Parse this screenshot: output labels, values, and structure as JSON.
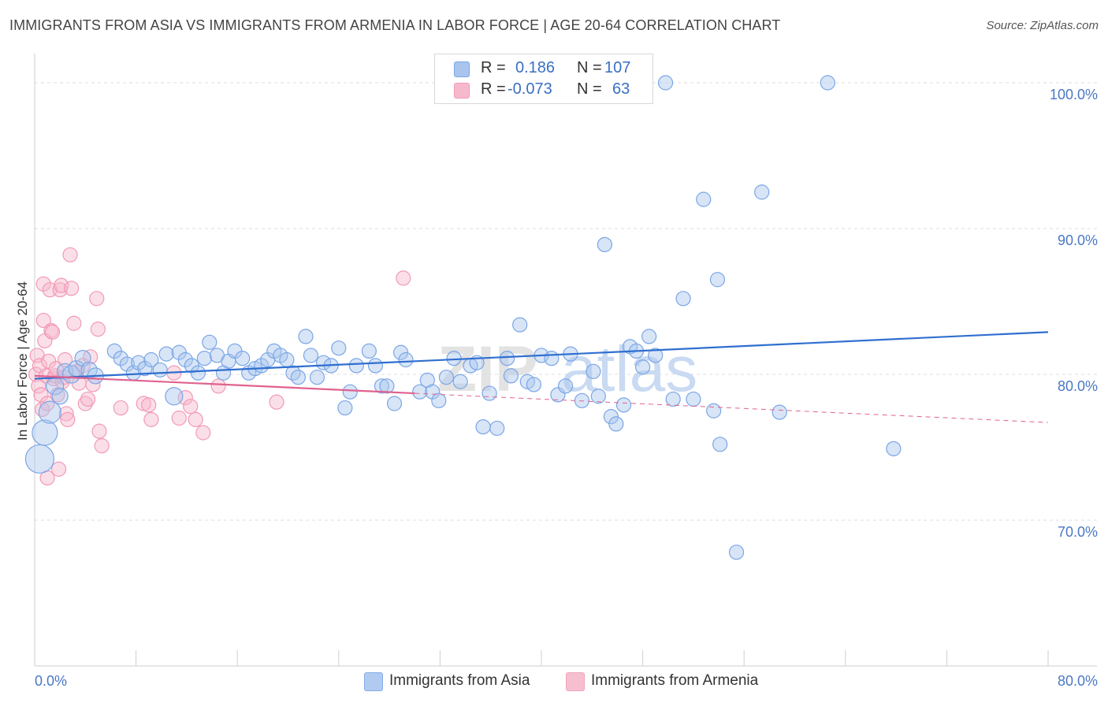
{
  "header": {
    "title": "IMMIGRANTS FROM ASIA VS IMMIGRANTS FROM ARMENIA IN LABOR FORCE | AGE 20-64 CORRELATION CHART",
    "source": "Source: ZipAtlas.com"
  },
  "legend": {
    "rows": [
      {
        "r_label": "R =",
        "r_value": "0.186",
        "n_label": "N =",
        "n_value": "107",
        "color": "#a9c5ee"
      },
      {
        "r_label": "R =",
        "r_value": "-0.073",
        "n_label": "N =",
        "n_value": "63",
        "color": "#f6b9cb"
      }
    ]
  },
  "bottom_legend": [
    {
      "label": "Immigrants from Asia",
      "color": "#a9c5ee"
    },
    {
      "label": "Immigrants from Armenia",
      "color": "#f6b9cb"
    }
  ],
  "watermark": {
    "zip": "ZIP",
    "atlas": "atlas"
  },
  "chart_data": {
    "type": "scatter",
    "ylabel": "In Labor Force | Age 20-64",
    "xlim": [
      0,
      80
    ],
    "ylim": [
      60,
      102
    ],
    "x_ticks": [
      "0.0%",
      "80.0%"
    ],
    "y_ticks": [
      {
        "value": 100,
        "label": "100.0%"
      },
      {
        "value": 90,
        "label": "90.0%"
      },
      {
        "value": 80,
        "label": "80.0%"
      },
      {
        "value": 70,
        "label": "70.0%"
      }
    ],
    "grid": true,
    "series": [
      {
        "name": "Immigrants from Asia",
        "color": "#7aa6e6",
        "trend": {
          "x": [
            0,
            80
          ],
          "y": [
            79.7,
            82.9
          ],
          "color": "#2f6fd0",
          "dashed_from": null
        },
        "points": [
          [
            0.4,
            74.2,
            18
          ],
          [
            0.8,
            76.0,
            16
          ],
          [
            1.2,
            77.4,
            14
          ],
          [
            1.6,
            79.2,
            11
          ],
          [
            2.0,
            78.5,
            10
          ],
          [
            2.4,
            80.2,
            10
          ],
          [
            2.9,
            80.0,
            11
          ],
          [
            3.3,
            80.4,
            10
          ],
          [
            3.8,
            81.1,
            10
          ],
          [
            4.3,
            80.3,
            10
          ],
          [
            4.8,
            79.9,
            10
          ],
          [
            6.3,
            81.6,
            9
          ],
          [
            6.8,
            81.1,
            9
          ],
          [
            7.3,
            80.7,
            9
          ],
          [
            7.8,
            80.1,
            9
          ],
          [
            8.2,
            80.8,
            9
          ],
          [
            8.7,
            80.4,
            9
          ],
          [
            9.2,
            81.0,
            9
          ],
          [
            9.9,
            80.3,
            9
          ],
          [
            10.4,
            81.4,
            9
          ],
          [
            11.0,
            78.5,
            11
          ],
          [
            11.4,
            81.5,
            9
          ],
          [
            11.9,
            81.0,
            9
          ],
          [
            12.4,
            80.6,
            9
          ],
          [
            12.9,
            80.1,
            9
          ],
          [
            13.4,
            81.1,
            9
          ],
          [
            13.8,
            82.2,
            9
          ],
          [
            14.4,
            81.3,
            9
          ],
          [
            14.9,
            80.1,
            9
          ],
          [
            15.3,
            80.9,
            9
          ],
          [
            15.8,
            81.6,
            9
          ],
          [
            16.4,
            81.1,
            9
          ],
          [
            16.9,
            80.1,
            9
          ],
          [
            17.4,
            80.4,
            9
          ],
          [
            17.9,
            80.6,
            9
          ],
          [
            18.4,
            81.0,
            9
          ],
          [
            18.9,
            81.6,
            9
          ],
          [
            19.4,
            81.3,
            9
          ],
          [
            19.9,
            81.0,
            9
          ],
          [
            20.4,
            80.1,
            9
          ],
          [
            20.8,
            79.8,
            9
          ],
          [
            21.4,
            82.6,
            9
          ],
          [
            21.8,
            81.3,
            9
          ],
          [
            22.3,
            79.8,
            9
          ],
          [
            22.8,
            80.8,
            9
          ],
          [
            23.4,
            80.6,
            9
          ],
          [
            24.0,
            81.8,
            9
          ],
          [
            24.5,
            77.7,
            9
          ],
          [
            24.9,
            78.8,
            9
          ],
          [
            25.4,
            80.6,
            9
          ],
          [
            26.4,
            81.6,
            9
          ],
          [
            26.9,
            80.6,
            9
          ],
          [
            27.4,
            79.2,
            9
          ],
          [
            27.8,
            79.2,
            9
          ],
          [
            28.4,
            78.0,
            9
          ],
          [
            28.9,
            81.5,
            9
          ],
          [
            29.3,
            81.0,
            9
          ],
          [
            30.4,
            78.8,
            9
          ],
          [
            31.0,
            79.6,
            9
          ],
          [
            31.4,
            78.8,
            9
          ],
          [
            31.9,
            78.2,
            9
          ],
          [
            32.5,
            79.8,
            9
          ],
          [
            33.1,
            81.1,
            9
          ],
          [
            33.6,
            79.5,
            9
          ],
          [
            34.4,
            80.6,
            9
          ],
          [
            34.9,
            80.8,
            9
          ],
          [
            35.4,
            76.4,
            9
          ],
          [
            35.9,
            78.7,
            9
          ],
          [
            36.5,
            76.3,
            9
          ],
          [
            37.3,
            81.1,
            9
          ],
          [
            37.6,
            79.9,
            9
          ],
          [
            38.3,
            83.4,
            9
          ],
          [
            38.9,
            79.5,
            9
          ],
          [
            39.4,
            79.3,
            9
          ],
          [
            40.0,
            81.3,
            9
          ],
          [
            40.8,
            81.1,
            9
          ],
          [
            41.3,
            78.6,
            9
          ],
          [
            41.9,
            79.2,
            9
          ],
          [
            42.3,
            81.4,
            9
          ],
          [
            43.2,
            78.2,
            9
          ],
          [
            44.1,
            80.2,
            9
          ],
          [
            44.5,
            78.5,
            9
          ],
          [
            45.0,
            88.9,
            9
          ],
          [
            45.5,
            77.1,
            9
          ],
          [
            45.9,
            76.6,
            9
          ],
          [
            46.5,
            77.9,
            9
          ],
          [
            47.0,
            81.9,
            9
          ],
          [
            47.5,
            81.6,
            9
          ],
          [
            48.0,
            80.5,
            9
          ],
          [
            48.5,
            82.6,
            9
          ],
          [
            49.0,
            81.3,
            9
          ],
          [
            49.8,
            100.0,
            9
          ],
          [
            50.4,
            78.3,
            9
          ],
          [
            51.2,
            85.2,
            9
          ],
          [
            52.0,
            78.3,
            9
          ],
          [
            52.8,
            92.0,
            9
          ],
          [
            53.6,
            77.5,
            9
          ],
          [
            53.9,
            86.5,
            9
          ],
          [
            54.1,
            75.2,
            9
          ],
          [
            55.4,
            67.8,
            9
          ],
          [
            57.4,
            92.5,
            9
          ],
          [
            58.8,
            77.4,
            9
          ],
          [
            62.6,
            100.0,
            9
          ],
          [
            67.8,
            74.9,
            9
          ]
        ]
      },
      {
        "name": "Immigrants from Armenia",
        "color": "#f29ab5",
        "trend": {
          "x": [
            0,
            80
          ],
          "y": [
            79.9,
            76.7
          ],
          "color": "#e0628f",
          "dashed_from": 30
        },
        "points": [
          [
            0.1,
            80.0,
            9
          ],
          [
            0.2,
            81.3,
            9
          ],
          [
            0.3,
            79.2,
            9
          ],
          [
            0.4,
            80.6,
            9
          ],
          [
            0.5,
            78.6,
            9
          ],
          [
            0.6,
            77.6,
            9
          ],
          [
            0.7,
            83.7,
            9
          ],
          [
            0.7,
            86.2,
            9
          ],
          [
            0.8,
            82.3,
            9
          ],
          [
            0.9,
            79.9,
            9
          ],
          [
            1.0,
            78.0,
            9
          ],
          [
            1.0,
            72.9,
            9
          ],
          [
            1.1,
            80.9,
            9
          ],
          [
            1.2,
            85.8,
            9
          ],
          [
            1.3,
            83.0,
            9
          ],
          [
            1.4,
            82.9,
            9
          ],
          [
            1.5,
            79.7,
            9
          ],
          [
            1.6,
            79.9,
            9
          ],
          [
            1.7,
            80.4,
            9
          ],
          [
            1.8,
            78.6,
            9
          ],
          [
            1.9,
            73.5,
            9
          ],
          [
            2.0,
            85.8,
            9
          ],
          [
            2.1,
            86.1,
            9
          ],
          [
            2.2,
            79.5,
            9
          ],
          [
            2.3,
            79.8,
            9
          ],
          [
            2.4,
            81.0,
            9
          ],
          [
            2.5,
            77.3,
            9
          ],
          [
            2.6,
            76.9,
            9
          ],
          [
            2.8,
            88.2,
            9
          ],
          [
            2.9,
            85.9,
            9
          ],
          [
            3.1,
            83.5,
            9
          ],
          [
            3.3,
            80.2,
            9
          ],
          [
            3.5,
            79.4,
            9
          ],
          [
            3.8,
            80.6,
            9
          ],
          [
            4.0,
            78.0,
            9
          ],
          [
            4.2,
            78.3,
            9
          ],
          [
            4.4,
            81.2,
            9
          ],
          [
            4.6,
            79.3,
            9
          ],
          [
            4.9,
            85.2,
            9
          ],
          [
            5.0,
            83.1,
            9
          ],
          [
            5.1,
            76.1,
            9
          ],
          [
            5.3,
            75.1,
            9
          ],
          [
            6.8,
            77.7,
            9
          ],
          [
            8.6,
            78.0,
            9
          ],
          [
            9.0,
            77.9,
            9
          ],
          [
            9.2,
            76.9,
            9
          ],
          [
            11.0,
            80.1,
            9
          ],
          [
            11.4,
            77.0,
            9
          ],
          [
            11.9,
            78.4,
            9
          ],
          [
            12.3,
            77.8,
            9
          ],
          [
            12.7,
            76.9,
            9
          ],
          [
            13.3,
            76.0,
            9
          ],
          [
            14.5,
            79.2,
            9
          ],
          [
            19.1,
            78.1,
            9
          ],
          [
            29.1,
            86.6,
            9
          ]
        ]
      }
    ]
  }
}
